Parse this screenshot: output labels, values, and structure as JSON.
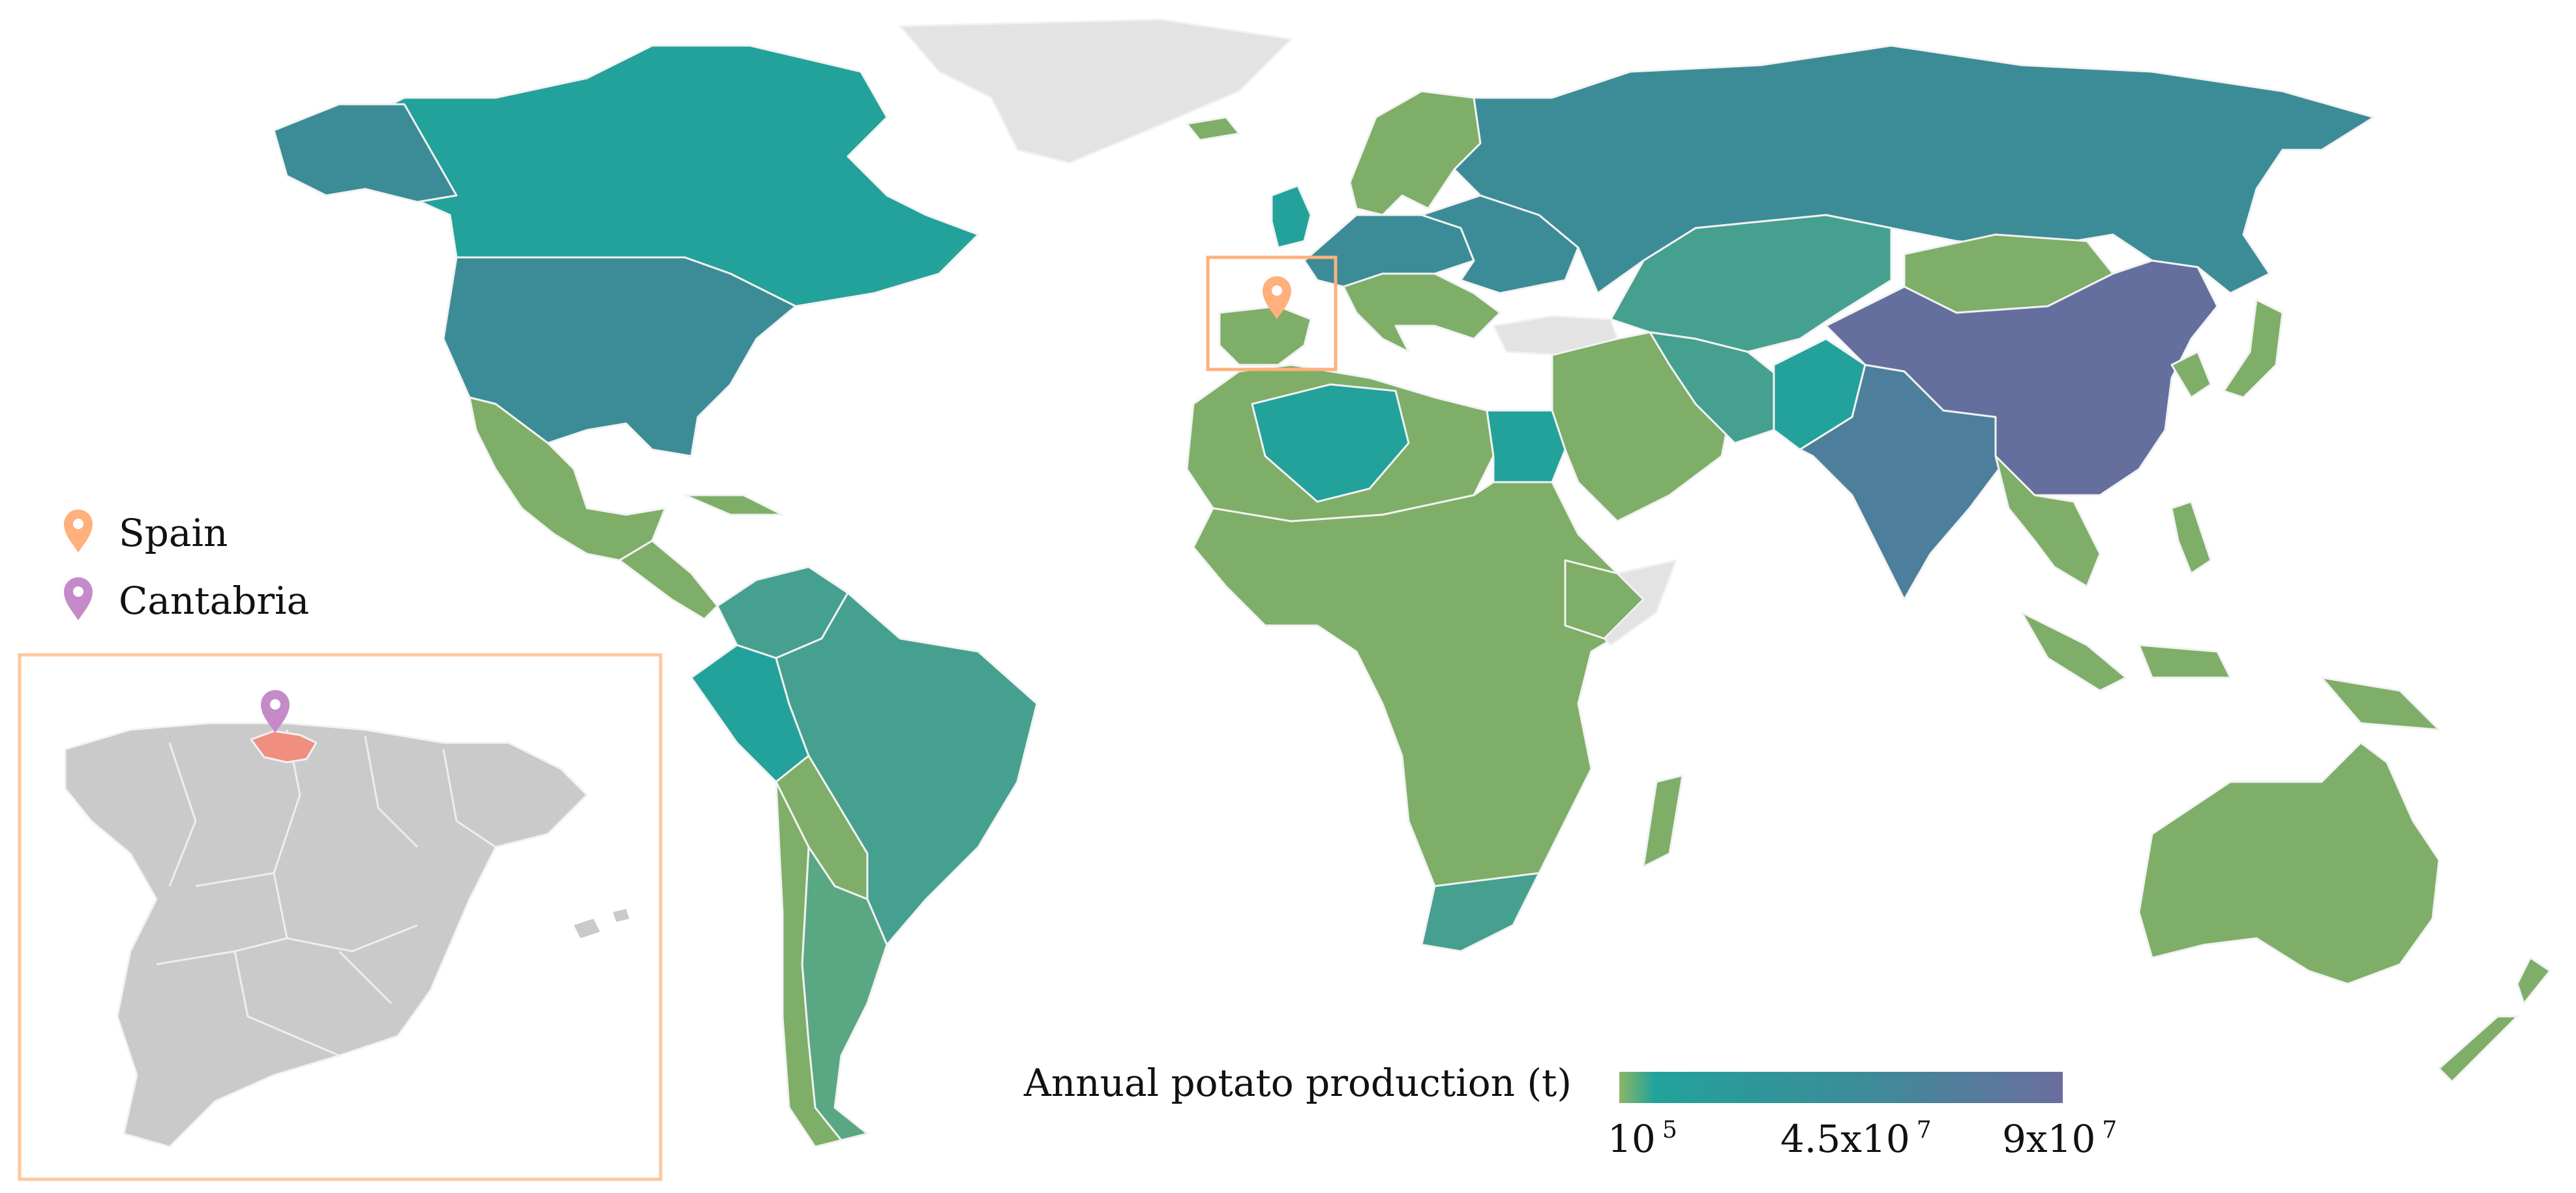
{
  "legend": {
    "title": "Annual potato production (t)",
    "gradient_colors": [
      "#8db566",
      "#22a29b",
      "#3c8c97",
      "#6a6e9f"
    ],
    "ticks": [
      {
        "base": "10",
        "exp": "5",
        "value": 100000
      },
      {
        "base": "4.5x10",
        "exp": "7",
        "value": 45000000
      },
      {
        "base": "9x10",
        "exp": "7",
        "value": 90000000
      }
    ]
  },
  "markers": {
    "spain": {
      "label": "Spain",
      "color": "#ffb07c"
    },
    "cantabria": {
      "label": "Cantabria",
      "color": "#c58bc8"
    }
  },
  "colors": {
    "no_data": "#e3e3e3",
    "low": "#7eae68",
    "mid_low": "#5aa784",
    "mid": "#45a08f",
    "mid_high": "#22a29b",
    "high": "#3c8c97",
    "india": "#4d7f9c",
    "china": "#646f9e",
    "inset_region": "#cacaca",
    "cantabria_fill": "#f08f80",
    "inset_border": "#ffc79e"
  }
}
